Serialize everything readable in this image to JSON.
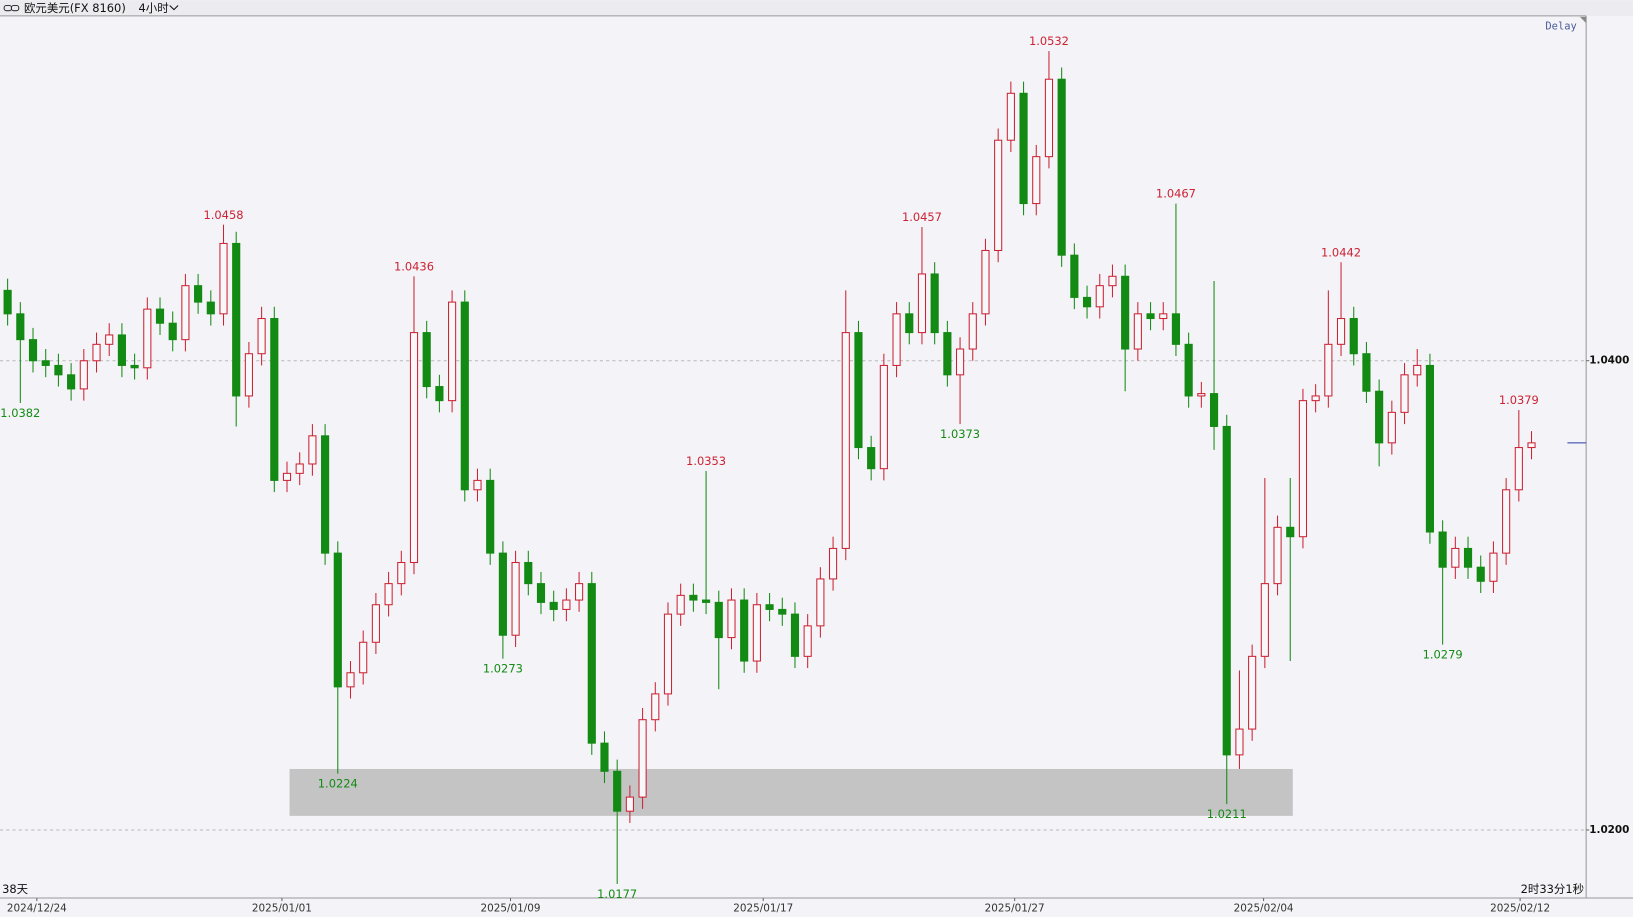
{
  "chart_data": {
    "type": "candlestick",
    "title": "欧元美元(FX 8160)",
    "period": "4小时",
    "status": "Delay",
    "span_label": "38天",
    "countdown": "2时33分1秒",
    "up_color": "#cc2233",
    "down_color": "#138a13",
    "grid": true,
    "ylim": [
      1.0171,
      1.0547
    ],
    "yticks": [
      {
        "value": 1.02,
        "label": "1.0200"
      },
      {
        "value": 1.04,
        "label": "1.0400"
      }
    ],
    "xlim": [
      -0.6,
      124.3
    ],
    "xticks": [
      {
        "value": 2.3,
        "label": "2024/12/24"
      },
      {
        "value": 21.6,
        "label": "2025/01/01"
      },
      {
        "value": 39.6,
        "label": "2025/01/09"
      },
      {
        "value": 59.5,
        "label": "2025/01/17"
      },
      {
        "value": 79.3,
        "label": "2025/01/27"
      },
      {
        "value": 98.9,
        "label": "2025/02/04"
      },
      {
        "value": 119.1,
        "label": "2025/02/12"
      }
    ],
    "candles": [
      [
        1.043,
        1.0435,
        1.0415,
        1.042
      ],
      [
        1.042,
        1.0425,
        1.0382,
        1.0409
      ],
      [
        1.0409,
        1.0414,
        1.0395,
        1.04
      ],
      [
        1.04,
        1.0405,
        1.0393,
        1.0398
      ],
      [
        1.0398,
        1.0403,
        1.0389,
        1.0394
      ],
      [
        1.0394,
        1.0399,
        1.0383,
        1.0388
      ],
      [
        1.0388,
        1.0405,
        1.0383,
        1.04
      ],
      [
        1.04,
        1.0412,
        1.0395,
        1.0407
      ],
      [
        1.0407,
        1.0416,
        1.0402,
        1.0411
      ],
      [
        1.0411,
        1.0416,
        1.0393,
        1.0398
      ],
      [
        1.0398,
        1.0403,
        1.0392,
        1.0397
      ],
      [
        1.0397,
        1.0427,
        1.0392,
        1.0422
      ],
      [
        1.0422,
        1.0427,
        1.0411,
        1.0416
      ],
      [
        1.0416,
        1.0421,
        1.0404,
        1.0409
      ],
      [
        1.0409,
        1.0437,
        1.0404,
        1.0432
      ],
      [
        1.0432,
        1.0437,
        1.042,
        1.0425
      ],
      [
        1.0425,
        1.043,
        1.0415,
        1.042
      ],
      [
        1.042,
        1.0458,
        1.0415,
        1.045
      ],
      [
        1.045,
        1.0455,
        1.0372,
        1.0385
      ],
      [
        1.0385,
        1.0408,
        1.038,
        1.0403
      ],
      [
        1.0403,
        1.0423,
        1.0398,
        1.0418
      ],
      [
        1.0418,
        1.0423,
        1.0344,
        1.0349
      ],
      [
        1.0349,
        1.0357,
        1.0344,
        1.0352
      ],
      [
        1.0352,
        1.0361,
        1.0347,
        1.0356
      ],
      [
        1.0356,
        1.0373,
        1.0351,
        1.0368
      ],
      [
        1.0368,
        1.0373,
        1.0313,
        1.0318
      ],
      [
        1.0318,
        1.0323,
        1.0224,
        1.0261
      ],
      [
        1.0261,
        1.0272,
        1.0256,
        1.0267
      ],
      [
        1.0267,
        1.0285,
        1.0262,
        1.028
      ],
      [
        1.028,
        1.0301,
        1.0275,
        1.0296
      ],
      [
        1.0296,
        1.031,
        1.0291,
        1.0305
      ],
      [
        1.0305,
        1.0319,
        1.03,
        1.0314
      ],
      [
        1.0314,
        1.0436,
        1.0309,
        1.0412
      ],
      [
        1.0412,
        1.0417,
        1.0384,
        1.0389
      ],
      [
        1.0389,
        1.0394,
        1.0378,
        1.0383
      ],
      [
        1.0383,
        1.043,
        1.0378,
        1.0425
      ],
      [
        1.0425,
        1.043,
        1.034,
        1.0345
      ],
      [
        1.0345,
        1.0354,
        1.034,
        1.0349
      ],
      [
        1.0349,
        1.0354,
        1.0313,
        1.0318
      ],
      [
        1.0318,
        1.0323,
        1.0273,
        1.0283
      ],
      [
        1.0283,
        1.0319,
        1.0278,
        1.0314
      ],
      [
        1.0314,
        1.0319,
        1.03,
        1.0305
      ],
      [
        1.0305,
        1.031,
        1.0292,
        1.0297
      ],
      [
        1.0297,
        1.0302,
        1.0289,
        1.0294
      ],
      [
        1.0294,
        1.0303,
        1.0289,
        1.0298
      ],
      [
        1.0298,
        1.031,
        1.0293,
        1.0305
      ],
      [
        1.0305,
        1.031,
        1.0232,
        1.0237
      ],
      [
        1.0237,
        1.0242,
        1.022,
        1.0225
      ],
      [
        1.0225,
        1.023,
        1.0177,
        1.0208
      ],
      [
        1.0208,
        1.0219,
        1.0203,
        1.0214
      ],
      [
        1.0214,
        1.0252,
        1.0209,
        1.0247
      ],
      [
        1.0247,
        1.0263,
        1.0242,
        1.0258
      ],
      [
        1.0258,
        1.0297,
        1.0253,
        1.0292
      ],
      [
        1.0292,
        1.0305,
        1.0287,
        1.03
      ],
      [
        1.03,
        1.0305,
        1.0293,
        1.0298
      ],
      [
        1.0298,
        1.0353,
        1.0292,
        1.0297
      ],
      [
        1.0297,
        1.0302,
        1.026,
        1.0282
      ],
      [
        1.0282,
        1.0303,
        1.0277,
        1.0298
      ],
      [
        1.0298,
        1.0303,
        1.0267,
        1.0272
      ],
      [
        1.0272,
        1.0301,
        1.0267,
        1.0296
      ],
      [
        1.0296,
        1.0301,
        1.0289,
        1.0294
      ],
      [
        1.0294,
        1.0299,
        1.0287,
        1.0292
      ],
      [
        1.0292,
        1.0297,
        1.0269,
        1.0274
      ],
      [
        1.0274,
        1.0292,
        1.0269,
        1.0287
      ],
      [
        1.0287,
        1.0312,
        1.0282,
        1.0307
      ],
      [
        1.0307,
        1.0325,
        1.0302,
        1.032
      ],
      [
        1.032,
        1.043,
        1.0315,
        1.0412
      ],
      [
        1.0412,
        1.0417,
        1.0358,
        1.0363
      ],
      [
        1.0363,
        1.0368,
        1.0349,
        1.0354
      ],
      [
        1.0354,
        1.0403,
        1.0349,
        1.0398
      ],
      [
        1.0398,
        1.0425,
        1.0393,
        1.042
      ],
      [
        1.042,
        1.0425,
        1.0407,
        1.0412
      ],
      [
        1.0412,
        1.0457,
        1.0407,
        1.0437
      ],
      [
        1.0437,
        1.0442,
        1.0407,
        1.0412
      ],
      [
        1.0412,
        1.0417,
        1.0389,
        1.0394
      ],
      [
        1.0394,
        1.041,
        1.0373,
        1.0405
      ],
      [
        1.0405,
        1.0425,
        1.04,
        1.042
      ],
      [
        1.042,
        1.0452,
        1.0415,
        1.0447
      ],
      [
        1.0447,
        1.0499,
        1.0442,
        1.0494
      ],
      [
        1.0494,
        1.0519,
        1.0489,
        1.0514
      ],
      [
        1.0514,
        1.0519,
        1.0462,
        1.0467
      ],
      [
        1.0467,
        1.0492,
        1.0462,
        1.0487
      ],
      [
        1.0487,
        1.0532,
        1.0482,
        1.052
      ],
      [
        1.052,
        1.0525,
        1.044,
        1.0445
      ],
      [
        1.0445,
        1.045,
        1.0422,
        1.0427
      ],
      [
        1.0427,
        1.0432,
        1.0418,
        1.0423
      ],
      [
        1.0423,
        1.0437,
        1.0418,
        1.0432
      ],
      [
        1.0432,
        1.0441,
        1.0427,
        1.0436
      ],
      [
        1.0436,
        1.0441,
        1.0387,
        1.0405
      ],
      [
        1.0405,
        1.0425,
        1.04,
        1.042
      ],
      [
        1.042,
        1.0425,
        1.0413,
        1.0418
      ],
      [
        1.0418,
        1.0425,
        1.0413,
        1.042
      ],
      [
        1.042,
        1.0467,
        1.0402,
        1.0407
      ],
      [
        1.0407,
        1.0412,
        1.038,
        1.0385
      ],
      [
        1.0385,
        1.0391,
        1.038,
        1.0386
      ],
      [
        1.0386,
        1.0434,
        1.0362,
        1.0372
      ],
      [
        1.0372,
        1.0377,
        1.0211,
        1.0232
      ],
      [
        1.0232,
        1.0268,
        1.0226,
        1.0243
      ],
      [
        1.0243,
        1.0279,
        1.0238,
        1.0274
      ],
      [
        1.0274,
        1.035,
        1.0269,
        1.0305
      ],
      [
        1.0305,
        1.0334,
        1.03,
        1.0329
      ],
      [
        1.0329,
        1.035,
        1.0272,
        1.0325
      ],
      [
        1.0325,
        1.0388,
        1.032,
        1.0383
      ],
      [
        1.0383,
        1.039,
        1.0378,
        1.0385
      ],
      [
        1.0385,
        1.043,
        1.038,
        1.0407
      ],
      [
        1.0407,
        1.0442,
        1.0402,
        1.0418
      ],
      [
        1.0418,
        1.0423,
        1.0398,
        1.0403
      ],
      [
        1.0403,
        1.0408,
        1.0382,
        1.0387
      ],
      [
        1.0387,
        1.0392,
        1.0355,
        1.0365
      ],
      [
        1.0365,
        1.0383,
        1.036,
        1.0378
      ],
      [
        1.0378,
        1.0399,
        1.0373,
        1.0394
      ],
      [
        1.0394,
        1.0405,
        1.0389,
        1.0398
      ],
      [
        1.0398,
        1.0403,
        1.0322,
        1.0327
      ],
      [
        1.0327,
        1.0332,
        1.0279,
        1.0312
      ],
      [
        1.0312,
        1.0325,
        1.0307,
        1.032
      ],
      [
        1.032,
        1.0325,
        1.0307,
        1.0312
      ],
      [
        1.0312,
        1.0317,
        1.0301,
        1.0306
      ],
      [
        1.0306,
        1.0323,
        1.0301,
        1.0318
      ],
      [
        1.0318,
        1.035,
        1.0313,
        1.0345
      ],
      [
        1.0345,
        1.0379,
        1.034,
        1.0363
      ],
      [
        1.0363,
        1.037,
        1.0358,
        1.0365
      ]
    ],
    "annotations": [
      {
        "index": 1,
        "value": 1.0382,
        "label": "1.0382",
        "side": "below"
      },
      {
        "index": 17,
        "value": 1.0458,
        "label": "1.0458",
        "side": "above"
      },
      {
        "index": 26,
        "value": 1.0224,
        "label": "1.0224",
        "side": "below"
      },
      {
        "index": 32,
        "value": 1.0436,
        "label": "1.0436",
        "side": "above"
      },
      {
        "index": 39,
        "value": 1.0273,
        "label": "1.0273",
        "side": "below"
      },
      {
        "index": 48,
        "value": 1.0177,
        "label": "1.0177",
        "side": "below"
      },
      {
        "index": 55,
        "value": 1.0353,
        "label": "1.0353",
        "side": "above"
      },
      {
        "index": 72,
        "value": 1.0457,
        "label": "1.0457",
        "side": "above"
      },
      {
        "index": 75,
        "value": 1.0373,
        "label": "1.0373",
        "side": "below"
      },
      {
        "index": 82,
        "value": 1.0532,
        "label": "1.0532",
        "side": "above"
      },
      {
        "index": 92,
        "value": 1.0467,
        "label": "1.0467",
        "side": "above"
      },
      {
        "index": 96,
        "value": 1.0211,
        "label": "1.0211",
        "side": "below"
      },
      {
        "index": 105,
        "value": 1.0442,
        "label": "1.0442",
        "side": "above"
      },
      {
        "index": 113,
        "value": 1.0279,
        "label": "1.0279",
        "side": "below"
      },
      {
        "index": 119,
        "value": 1.0379,
        "label": "1.0379",
        "side": "above"
      }
    ],
    "zone": {
      "xlim": [
        22.2,
        101.2
      ],
      "ylim": [
        1.0206,
        1.0226
      ],
      "color": "#c4c4c4"
    },
    "last_price": 1.0365,
    "last_price_color": "#2a3aa8"
  }
}
